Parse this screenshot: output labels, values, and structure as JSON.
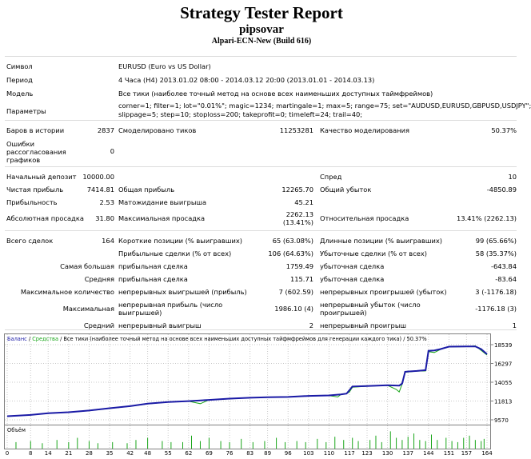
{
  "header": {
    "title": "Strategy Tester Report",
    "expert": "pipsovar",
    "server": "Alpari-ECN-New (Build 616)"
  },
  "settings": {
    "symbol_label": "Символ",
    "symbol_value": "EURUSD (Euro vs US Dollar)",
    "period_label": "Период",
    "period_value": "4 Часа (H4) 2013.01.02 08:00 - 2014.03.12 20:00 (2013.01.01 - 2014.03.13)",
    "model_label": "Модель",
    "model_value": "Все тики (наиболее точный метод на основе всех наименьших доступных таймфреймов)",
    "params_label": "Параметры",
    "params_line1": "corner=1; filter=1; lot=\"0.01%\"; magic=1234; martingale=1; max=5; range=75; set=\"AUDUSD,EURUSD,GBPUSD,USDJPY\";",
    "params_line2": "slippage=5; step=10; stoploss=200; takeprofit=0; timeleft=24; trail=40;"
  },
  "quality": {
    "bars_label": "Баров в истории",
    "bars_value": "2837",
    "ticks_label": "Смоделировано тиков",
    "ticks_value": "11253281",
    "quality_label": "Качество моделирования",
    "quality_value": "50.37%",
    "errors_label_1": "Ошибки",
    "errors_label_2": "рассогласования",
    "errors_label_3": "графиков",
    "errors_value": "0"
  },
  "results": {
    "deposit_label": "Начальный депозит",
    "deposit_value": "10000.00",
    "spread_label": "Спред",
    "spread_value": "10",
    "net_label": "Чистая прибыль",
    "net_value": "7414.81",
    "gross_profit_label": "Общая прибыль",
    "gross_profit_value": "12265.70",
    "gross_loss_label": "Общий убыток",
    "gross_loss_value": "-4850.89",
    "pf_label": "Прибыльность",
    "pf_value": "2.53",
    "payoff_label": "Матожидание выигрыша",
    "payoff_value": "45.21",
    "abs_dd_label": "Абсолютная просадка",
    "abs_dd_value": "31.80",
    "max_dd_label": "Максимальная просадка",
    "max_dd_value_1": "2262.13",
    "max_dd_value_2": "(13.41%)",
    "rel_dd_label": "Относительная просадка",
    "rel_dd_value": "13.41% (2262.13)"
  },
  "trades": {
    "total_label": "Всего сделок",
    "total_value": "164",
    "short_label": "Короткие позиции (% выигравших)",
    "short_value": "65 (63.08%)",
    "long_label": "Длинные позиции (% выигравших)",
    "long_value": "99 (65.66%)",
    "profit_trades_label": "Прибыльные сделки (% от всех)",
    "profit_trades_value": "106 (64.63%)",
    "loss_trades_label": "Убыточные сделки (% от всех)",
    "loss_trades_value": "58 (35.37%)",
    "largest_label": "Самая большая",
    "largest_profit_label": "прибыльная сделка",
    "largest_profit_value": "1759.49",
    "largest_loss_label": "убыточная сделка",
    "largest_loss_value": "-643.84",
    "average_label": "Средняя",
    "avg_profit_label": "прибыльная сделка",
    "avg_profit_value": "115.71",
    "avg_loss_label": "убыточная сделка",
    "avg_loss_value": "-83.64",
    "max_count_label": "Максимальное количество",
    "max_cons_wins_label": "непрерывных выигрышей (прибыль)",
    "max_cons_wins_value": "7 (602.59)",
    "max_cons_losses_label": "непрерывных проигрышей (убыток)",
    "max_cons_losses_value": "3 (-1176.18)",
    "maximal_label": "Максимальная",
    "max_profit_label_1": "непрерывная прибыль (число",
    "max_profit_label_2": "выигрышей)",
    "max_profit_value": "1986.10 (4)",
    "max_loss_label_1": "непрерывный убыток (число",
    "max_loss_label_2": "проигрышей)",
    "max_loss_value": "-1176.18 (3)",
    "avg_cons_label": "Средний",
    "avg_cons_wins_label": "непрерывный выигрыш",
    "avg_cons_wins_value": "2",
    "avg_cons_losses_label": "непрерывный проигрыш",
    "avg_cons_losses_value": "1"
  },
  "chart_data": {
    "type": "line",
    "legend_balance": "Баланс",
    "legend_sep": " / ",
    "legend_equity": "Средства",
    "legend_rest": " / Все тики (наиболее точный метод на основе всех наименьших доступных тайфмфреймов для генерации каждого тика) / 50.37%",
    "volume_label": "Объём",
    "y_ticks": [
      18539,
      16297,
      14055,
      11813,
      9570
    ],
    "ylim": [
      9570,
      18539
    ],
    "x_ticks": [
      0,
      8,
      14,
      21,
      28,
      35,
      42,
      48,
      55,
      62,
      69,
      76,
      83,
      89,
      96,
      103,
      110,
      117,
      123,
      130,
      137,
      144,
      151,
      157,
      164
    ],
    "xlim": [
      0,
      164
    ],
    "colors": {
      "balance": "#1a1aa6",
      "equity": "#1aa61a",
      "volume": "#1aa61a",
      "grid": "#c8c8c8"
    },
    "balance": [
      [
        0,
        10000
      ],
      [
        8,
        10150
      ],
      [
        14,
        10350
      ],
      [
        21,
        10480
      ],
      [
        28,
        10680
      ],
      [
        35,
        10950
      ],
      [
        42,
        11200
      ],
      [
        48,
        11500
      ],
      [
        55,
        11700
      ],
      [
        62,
        11800
      ],
      [
        69,
        11950
      ],
      [
        76,
        12100
      ],
      [
        83,
        12200
      ],
      [
        89,
        12260
      ],
      [
        96,
        12300
      ],
      [
        103,
        12420
      ],
      [
        110,
        12480
      ],
      [
        114,
        12600
      ],
      [
        116,
        12700
      ],
      [
        118,
        13550
      ],
      [
        123,
        13600
      ],
      [
        130,
        13700
      ],
      [
        134,
        13650
      ],
      [
        135,
        13900
      ],
      [
        136,
        15300
      ],
      [
        140,
        15400
      ],
      [
        143,
        15500
      ],
      [
        144,
        17800
      ],
      [
        146,
        17850
      ],
      [
        148,
        18000
      ],
      [
        151,
        18300
      ],
      [
        157,
        18320
      ],
      [
        160,
        18330
      ],
      [
        162,
        18000
      ],
      [
        164,
        17400
      ]
    ],
    "equity": [
      [
        0,
        10000
      ],
      [
        8,
        10150
      ],
      [
        14,
        10330
      ],
      [
        21,
        10470
      ],
      [
        28,
        10660
      ],
      [
        35,
        10930
      ],
      [
        42,
        11180
      ],
      [
        48,
        11470
      ],
      [
        55,
        11680
      ],
      [
        62,
        11790
      ],
      [
        66,
        11500
      ],
      [
        69,
        11950
      ],
      [
        76,
        12080
      ],
      [
        83,
        12190
      ],
      [
        89,
        12240
      ],
      [
        96,
        12280
      ],
      [
        103,
        12400
      ],
      [
        110,
        12460
      ],
      [
        113,
        12300
      ],
      [
        114,
        12580
      ],
      [
        116,
        12690
      ],
      [
        117,
        12900
      ],
      [
        118,
        13450
      ],
      [
        123,
        13580
      ],
      [
        130,
        13680
      ],
      [
        133,
        13200
      ],
      [
        134,
        12900
      ],
      [
        135,
        13850
      ],
      [
        136,
        15250
      ],
      [
        140,
        15380
      ],
      [
        143,
        15400
      ],
      [
        144,
        17700
      ],
      [
        146,
        17600
      ],
      [
        148,
        17950
      ],
      [
        151,
        18280
      ],
      [
        157,
        18300
      ],
      [
        160,
        18400
      ],
      [
        162,
        17850
      ],
      [
        164,
        17300
      ]
    ],
    "volume": [
      [
        3,
        0.3
      ],
      [
        8,
        0.35
      ],
      [
        12,
        0.25
      ],
      [
        17,
        0.4
      ],
      [
        21,
        0.3
      ],
      [
        24,
        0.5
      ],
      [
        28,
        0.35
      ],
      [
        31,
        0.25
      ],
      [
        36,
        0.3
      ],
      [
        41,
        0.25
      ],
      [
        44,
        0.4
      ],
      [
        48,
        0.5
      ],
      [
        53,
        0.35
      ],
      [
        56,
        0.3
      ],
      [
        60,
        0.3
      ],
      [
        63,
        0.6
      ],
      [
        66,
        0.35
      ],
      [
        69,
        0.5
      ],
      [
        73,
        0.35
      ],
      [
        76,
        0.3
      ],
      [
        80,
        0.45
      ],
      [
        84,
        0.3
      ],
      [
        88,
        0.35
      ],
      [
        92,
        0.5
      ],
      [
        95,
        0.3
      ],
      [
        99,
        0.35
      ],
      [
        102,
        0.3
      ],
      [
        106,
        0.45
      ],
      [
        109,
        0.3
      ],
      [
        112,
        0.55
      ],
      [
        115,
        0.4
      ],
      [
        118,
        0.5
      ],
      [
        120,
        0.35
      ],
      [
        124,
        0.4
      ],
      [
        126,
        0.6
      ],
      [
        128,
        0.3
      ],
      [
        131,
        0.8
      ],
      [
        133,
        0.5
      ],
      [
        135,
        0.4
      ],
      [
        137,
        0.55
      ],
      [
        139,
        0.7
      ],
      [
        141,
        0.4
      ],
      [
        143,
        0.35
      ],
      [
        145,
        0.65
      ],
      [
        147,
        0.4
      ],
      [
        150,
        0.5
      ],
      [
        152,
        0.35
      ],
      [
        154,
        0.3
      ],
      [
        156,
        0.5
      ],
      [
        158,
        0.6
      ],
      [
        160,
        0.4
      ],
      [
        162,
        0.35
      ],
      [
        163,
        0.45
      ]
    ]
  }
}
